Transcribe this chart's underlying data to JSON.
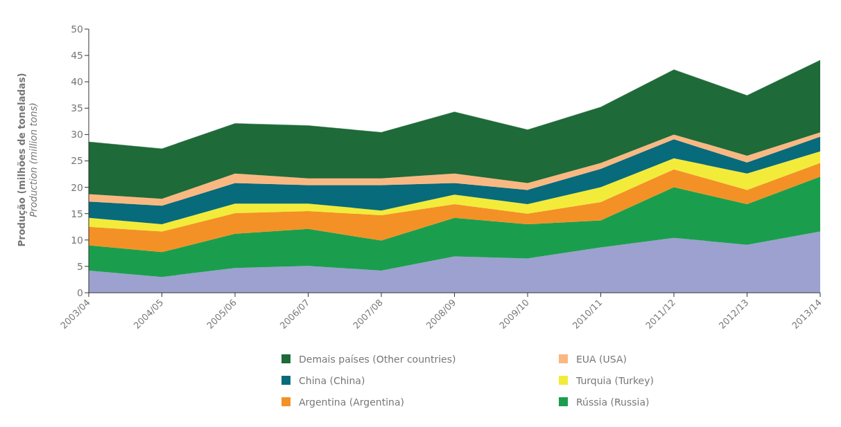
{
  "chart_data": {
    "type": "area",
    "stacked": true,
    "ylabel": "Produção (milhões de toneladas)\nProduction (million tons)",
    "categories": [
      "2003/04",
      "2004/05",
      "2005/06",
      "2006/07",
      "2007/08",
      "2008/09",
      "2009/10",
      "2010/11",
      "2011/12",
      "2012/13",
      "2013/14"
    ],
    "series": [
      {
        "color": "#9da1cf",
        "values": [
          4.2,
          3.0,
          4.7,
          5.1,
          4.2,
          6.9,
          6.5,
          8.6,
          10.4,
          9.1,
          11.6
        ]
      },
      {
        "name": "Rússia (Russia)",
        "color": "#1a9e4e",
        "values": [
          4.8,
          4.7,
          6.5,
          7.0,
          5.7,
          7.3,
          6.5,
          5.1,
          9.6,
          7.7,
          10.4
        ]
      },
      {
        "name": "Argentina (Argentina)",
        "color": "#f39126",
        "values": [
          3.5,
          3.9,
          3.9,
          3.4,
          4.8,
          2.6,
          2.0,
          3.5,
          3.4,
          2.7,
          2.6
        ]
      },
      {
        "name": "Turquia (Turkey)",
        "color": "#f3eb3a",
        "values": [
          1.7,
          1.4,
          1.8,
          1.4,
          0.9,
          1.8,
          1.8,
          2.8,
          2.1,
          3.1,
          2.2
        ]
      },
      {
        "name": "China (China)",
        "color": "#076b7b",
        "values": [
          3.1,
          3.5,
          3.9,
          3.5,
          4.8,
          2.2,
          2.7,
          3.5,
          3.6,
          2.1,
          2.8
        ]
      },
      {
        "name": "EUA (USA)",
        "color": "#f9b882",
        "values": [
          1.4,
          1.3,
          1.8,
          1.3,
          1.3,
          1.8,
          1.3,
          1.1,
          0.9,
          1.3,
          0.8
        ]
      },
      {
        "name": "Demais países (Other countries)",
        "color": "#1e6a38",
        "values": [
          9.9,
          9.5,
          9.5,
          10.0,
          8.7,
          11.7,
          10.1,
          10.6,
          12.3,
          11.4,
          13.7
        ]
      }
    ],
    "ylim": [
      0,
      50
    ],
    "yticks": [
      0,
      5,
      10,
      15,
      20,
      25,
      30,
      35,
      40,
      45,
      50
    ],
    "grid": false,
    "legend": "bottom"
  }
}
